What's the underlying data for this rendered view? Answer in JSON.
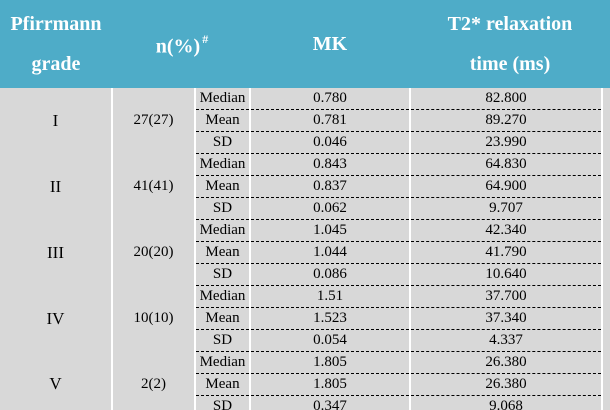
{
  "title": "Pfirrmann grade vs MK and T2* relaxation time table",
  "colors": {
    "header_bg": "#4EACC8",
    "header_text": "#FFFFFF",
    "body_bg": "#D8D8D8",
    "separator_line": "#FFFFFF",
    "dash_line": "#000000"
  },
  "header": {
    "grade_line1": "Pfirrmann",
    "grade_line2": "grade",
    "n_label": "n(%)",
    "n_sup": "#",
    "mk_label": "MK",
    "t2_line1": "T2* relaxation",
    "t2_line2": "time (ms)"
  },
  "stat_labels": [
    "Median",
    "Mean",
    "SD"
  ],
  "groups": [
    {
      "grade": "I",
      "n": "27(27)",
      "mk": [
        "0.780",
        "0.781",
        "0.046"
      ],
      "t2": [
        "82.800",
        "89.270",
        "23.990"
      ]
    },
    {
      "grade": "II",
      "n": "41(41)",
      "mk": [
        "0.843",
        "0.837",
        "0.062"
      ],
      "t2": [
        "64.830",
        "64.900",
        "9.707"
      ]
    },
    {
      "grade": "III",
      "n": "20(20)",
      "mk": [
        "1.045",
        "1.044",
        "0.086"
      ],
      "t2": [
        "42.340",
        "41.790",
        "10.640"
      ]
    },
    {
      "grade": "IV",
      "n": "10(10)",
      "mk": [
        "1.51",
        "1.523",
        "0.054"
      ],
      "t2": [
        "37.700",
        "37.340",
        "4.337"
      ]
    },
    {
      "grade": "V",
      "n": "2(2)",
      "mk": [
        "1.805",
        "1.805",
        "0.347"
      ],
      "t2": [
        "26.380",
        "26.380",
        "9.068"
      ]
    }
  ]
}
